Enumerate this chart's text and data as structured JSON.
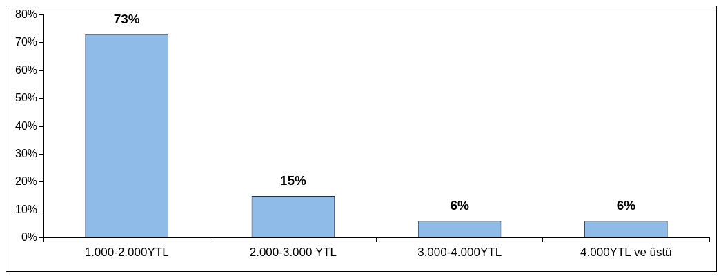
{
  "chart_data": {
    "type": "bar",
    "categories": [
      "1.000-2.000YTL",
      "2.000-3.000 YTL",
      "3.000-4.000YTL",
      "4.000YTL ve üstü"
    ],
    "values": [
      73,
      15,
      6,
      6
    ],
    "value_labels": [
      "73%",
      "15%",
      "6%",
      "6%"
    ],
    "color": "#8fbbe8",
    "ylim": [
      0,
      80
    ],
    "yticks": [
      {
        "value": 0,
        "label": "0%"
      },
      {
        "value": 10,
        "label": "10%"
      },
      {
        "value": 20,
        "label": "20%"
      },
      {
        "value": 30,
        "label": "30%"
      },
      {
        "value": 40,
        "label": "40%"
      },
      {
        "value": 50,
        "label": "50%"
      },
      {
        "value": 60,
        "label": "60%"
      },
      {
        "value": 70,
        "label": "70%"
      },
      {
        "value": 80,
        "label": "80%"
      }
    ],
    "grid": false,
    "legend": false
  }
}
